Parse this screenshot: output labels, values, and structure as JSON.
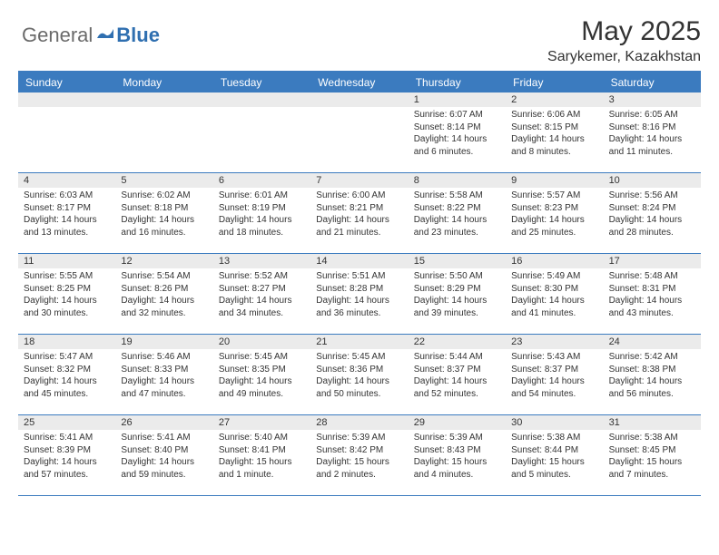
{
  "logo": {
    "textA": "General",
    "textB": "Blue"
  },
  "title": "May 2025",
  "location": "Sarykemer, Kazakhstan",
  "colors": {
    "accent": "#3b7bbf",
    "daybar": "#ebebeb",
    "text": "#333333",
    "logoGray": "#6b6b6b",
    "logoBlue": "#2f6fb0",
    "white": "#ffffff"
  },
  "weekdays": [
    "Sunday",
    "Monday",
    "Tuesday",
    "Wednesday",
    "Thursday",
    "Friday",
    "Saturday"
  ],
  "weeks": [
    [
      {
        "n": "",
        "sunrise": "",
        "sunset": "",
        "daylight": ""
      },
      {
        "n": "",
        "sunrise": "",
        "sunset": "",
        "daylight": ""
      },
      {
        "n": "",
        "sunrise": "",
        "sunset": "",
        "daylight": ""
      },
      {
        "n": "",
        "sunrise": "",
        "sunset": "",
        "daylight": ""
      },
      {
        "n": "1",
        "sunrise": "Sunrise: 6:07 AM",
        "sunset": "Sunset: 8:14 PM",
        "daylight": "Daylight: 14 hours and 6 minutes."
      },
      {
        "n": "2",
        "sunrise": "Sunrise: 6:06 AM",
        "sunset": "Sunset: 8:15 PM",
        "daylight": "Daylight: 14 hours and 8 minutes."
      },
      {
        "n": "3",
        "sunrise": "Sunrise: 6:05 AM",
        "sunset": "Sunset: 8:16 PM",
        "daylight": "Daylight: 14 hours and 11 minutes."
      }
    ],
    [
      {
        "n": "4",
        "sunrise": "Sunrise: 6:03 AM",
        "sunset": "Sunset: 8:17 PM",
        "daylight": "Daylight: 14 hours and 13 minutes."
      },
      {
        "n": "5",
        "sunrise": "Sunrise: 6:02 AM",
        "sunset": "Sunset: 8:18 PM",
        "daylight": "Daylight: 14 hours and 16 minutes."
      },
      {
        "n": "6",
        "sunrise": "Sunrise: 6:01 AM",
        "sunset": "Sunset: 8:19 PM",
        "daylight": "Daylight: 14 hours and 18 minutes."
      },
      {
        "n": "7",
        "sunrise": "Sunrise: 6:00 AM",
        "sunset": "Sunset: 8:21 PM",
        "daylight": "Daylight: 14 hours and 21 minutes."
      },
      {
        "n": "8",
        "sunrise": "Sunrise: 5:58 AM",
        "sunset": "Sunset: 8:22 PM",
        "daylight": "Daylight: 14 hours and 23 minutes."
      },
      {
        "n": "9",
        "sunrise": "Sunrise: 5:57 AM",
        "sunset": "Sunset: 8:23 PM",
        "daylight": "Daylight: 14 hours and 25 minutes."
      },
      {
        "n": "10",
        "sunrise": "Sunrise: 5:56 AM",
        "sunset": "Sunset: 8:24 PM",
        "daylight": "Daylight: 14 hours and 28 minutes."
      }
    ],
    [
      {
        "n": "11",
        "sunrise": "Sunrise: 5:55 AM",
        "sunset": "Sunset: 8:25 PM",
        "daylight": "Daylight: 14 hours and 30 minutes."
      },
      {
        "n": "12",
        "sunrise": "Sunrise: 5:54 AM",
        "sunset": "Sunset: 8:26 PM",
        "daylight": "Daylight: 14 hours and 32 minutes."
      },
      {
        "n": "13",
        "sunrise": "Sunrise: 5:52 AM",
        "sunset": "Sunset: 8:27 PM",
        "daylight": "Daylight: 14 hours and 34 minutes."
      },
      {
        "n": "14",
        "sunrise": "Sunrise: 5:51 AM",
        "sunset": "Sunset: 8:28 PM",
        "daylight": "Daylight: 14 hours and 36 minutes."
      },
      {
        "n": "15",
        "sunrise": "Sunrise: 5:50 AM",
        "sunset": "Sunset: 8:29 PM",
        "daylight": "Daylight: 14 hours and 39 minutes."
      },
      {
        "n": "16",
        "sunrise": "Sunrise: 5:49 AM",
        "sunset": "Sunset: 8:30 PM",
        "daylight": "Daylight: 14 hours and 41 minutes."
      },
      {
        "n": "17",
        "sunrise": "Sunrise: 5:48 AM",
        "sunset": "Sunset: 8:31 PM",
        "daylight": "Daylight: 14 hours and 43 minutes."
      }
    ],
    [
      {
        "n": "18",
        "sunrise": "Sunrise: 5:47 AM",
        "sunset": "Sunset: 8:32 PM",
        "daylight": "Daylight: 14 hours and 45 minutes."
      },
      {
        "n": "19",
        "sunrise": "Sunrise: 5:46 AM",
        "sunset": "Sunset: 8:33 PM",
        "daylight": "Daylight: 14 hours and 47 minutes."
      },
      {
        "n": "20",
        "sunrise": "Sunrise: 5:45 AM",
        "sunset": "Sunset: 8:35 PM",
        "daylight": "Daylight: 14 hours and 49 minutes."
      },
      {
        "n": "21",
        "sunrise": "Sunrise: 5:45 AM",
        "sunset": "Sunset: 8:36 PM",
        "daylight": "Daylight: 14 hours and 50 minutes."
      },
      {
        "n": "22",
        "sunrise": "Sunrise: 5:44 AM",
        "sunset": "Sunset: 8:37 PM",
        "daylight": "Daylight: 14 hours and 52 minutes."
      },
      {
        "n": "23",
        "sunrise": "Sunrise: 5:43 AM",
        "sunset": "Sunset: 8:37 PM",
        "daylight": "Daylight: 14 hours and 54 minutes."
      },
      {
        "n": "24",
        "sunrise": "Sunrise: 5:42 AM",
        "sunset": "Sunset: 8:38 PM",
        "daylight": "Daylight: 14 hours and 56 minutes."
      }
    ],
    [
      {
        "n": "25",
        "sunrise": "Sunrise: 5:41 AM",
        "sunset": "Sunset: 8:39 PM",
        "daylight": "Daylight: 14 hours and 57 minutes."
      },
      {
        "n": "26",
        "sunrise": "Sunrise: 5:41 AM",
        "sunset": "Sunset: 8:40 PM",
        "daylight": "Daylight: 14 hours and 59 minutes."
      },
      {
        "n": "27",
        "sunrise": "Sunrise: 5:40 AM",
        "sunset": "Sunset: 8:41 PM",
        "daylight": "Daylight: 15 hours and 1 minute."
      },
      {
        "n": "28",
        "sunrise": "Sunrise: 5:39 AM",
        "sunset": "Sunset: 8:42 PM",
        "daylight": "Daylight: 15 hours and 2 minutes."
      },
      {
        "n": "29",
        "sunrise": "Sunrise: 5:39 AM",
        "sunset": "Sunset: 8:43 PM",
        "daylight": "Daylight: 15 hours and 4 minutes."
      },
      {
        "n": "30",
        "sunrise": "Sunrise: 5:38 AM",
        "sunset": "Sunset: 8:44 PM",
        "daylight": "Daylight: 15 hours and 5 minutes."
      },
      {
        "n": "31",
        "sunrise": "Sunrise: 5:38 AM",
        "sunset": "Sunset: 8:45 PM",
        "daylight": "Daylight: 15 hours and 7 minutes."
      }
    ]
  ]
}
